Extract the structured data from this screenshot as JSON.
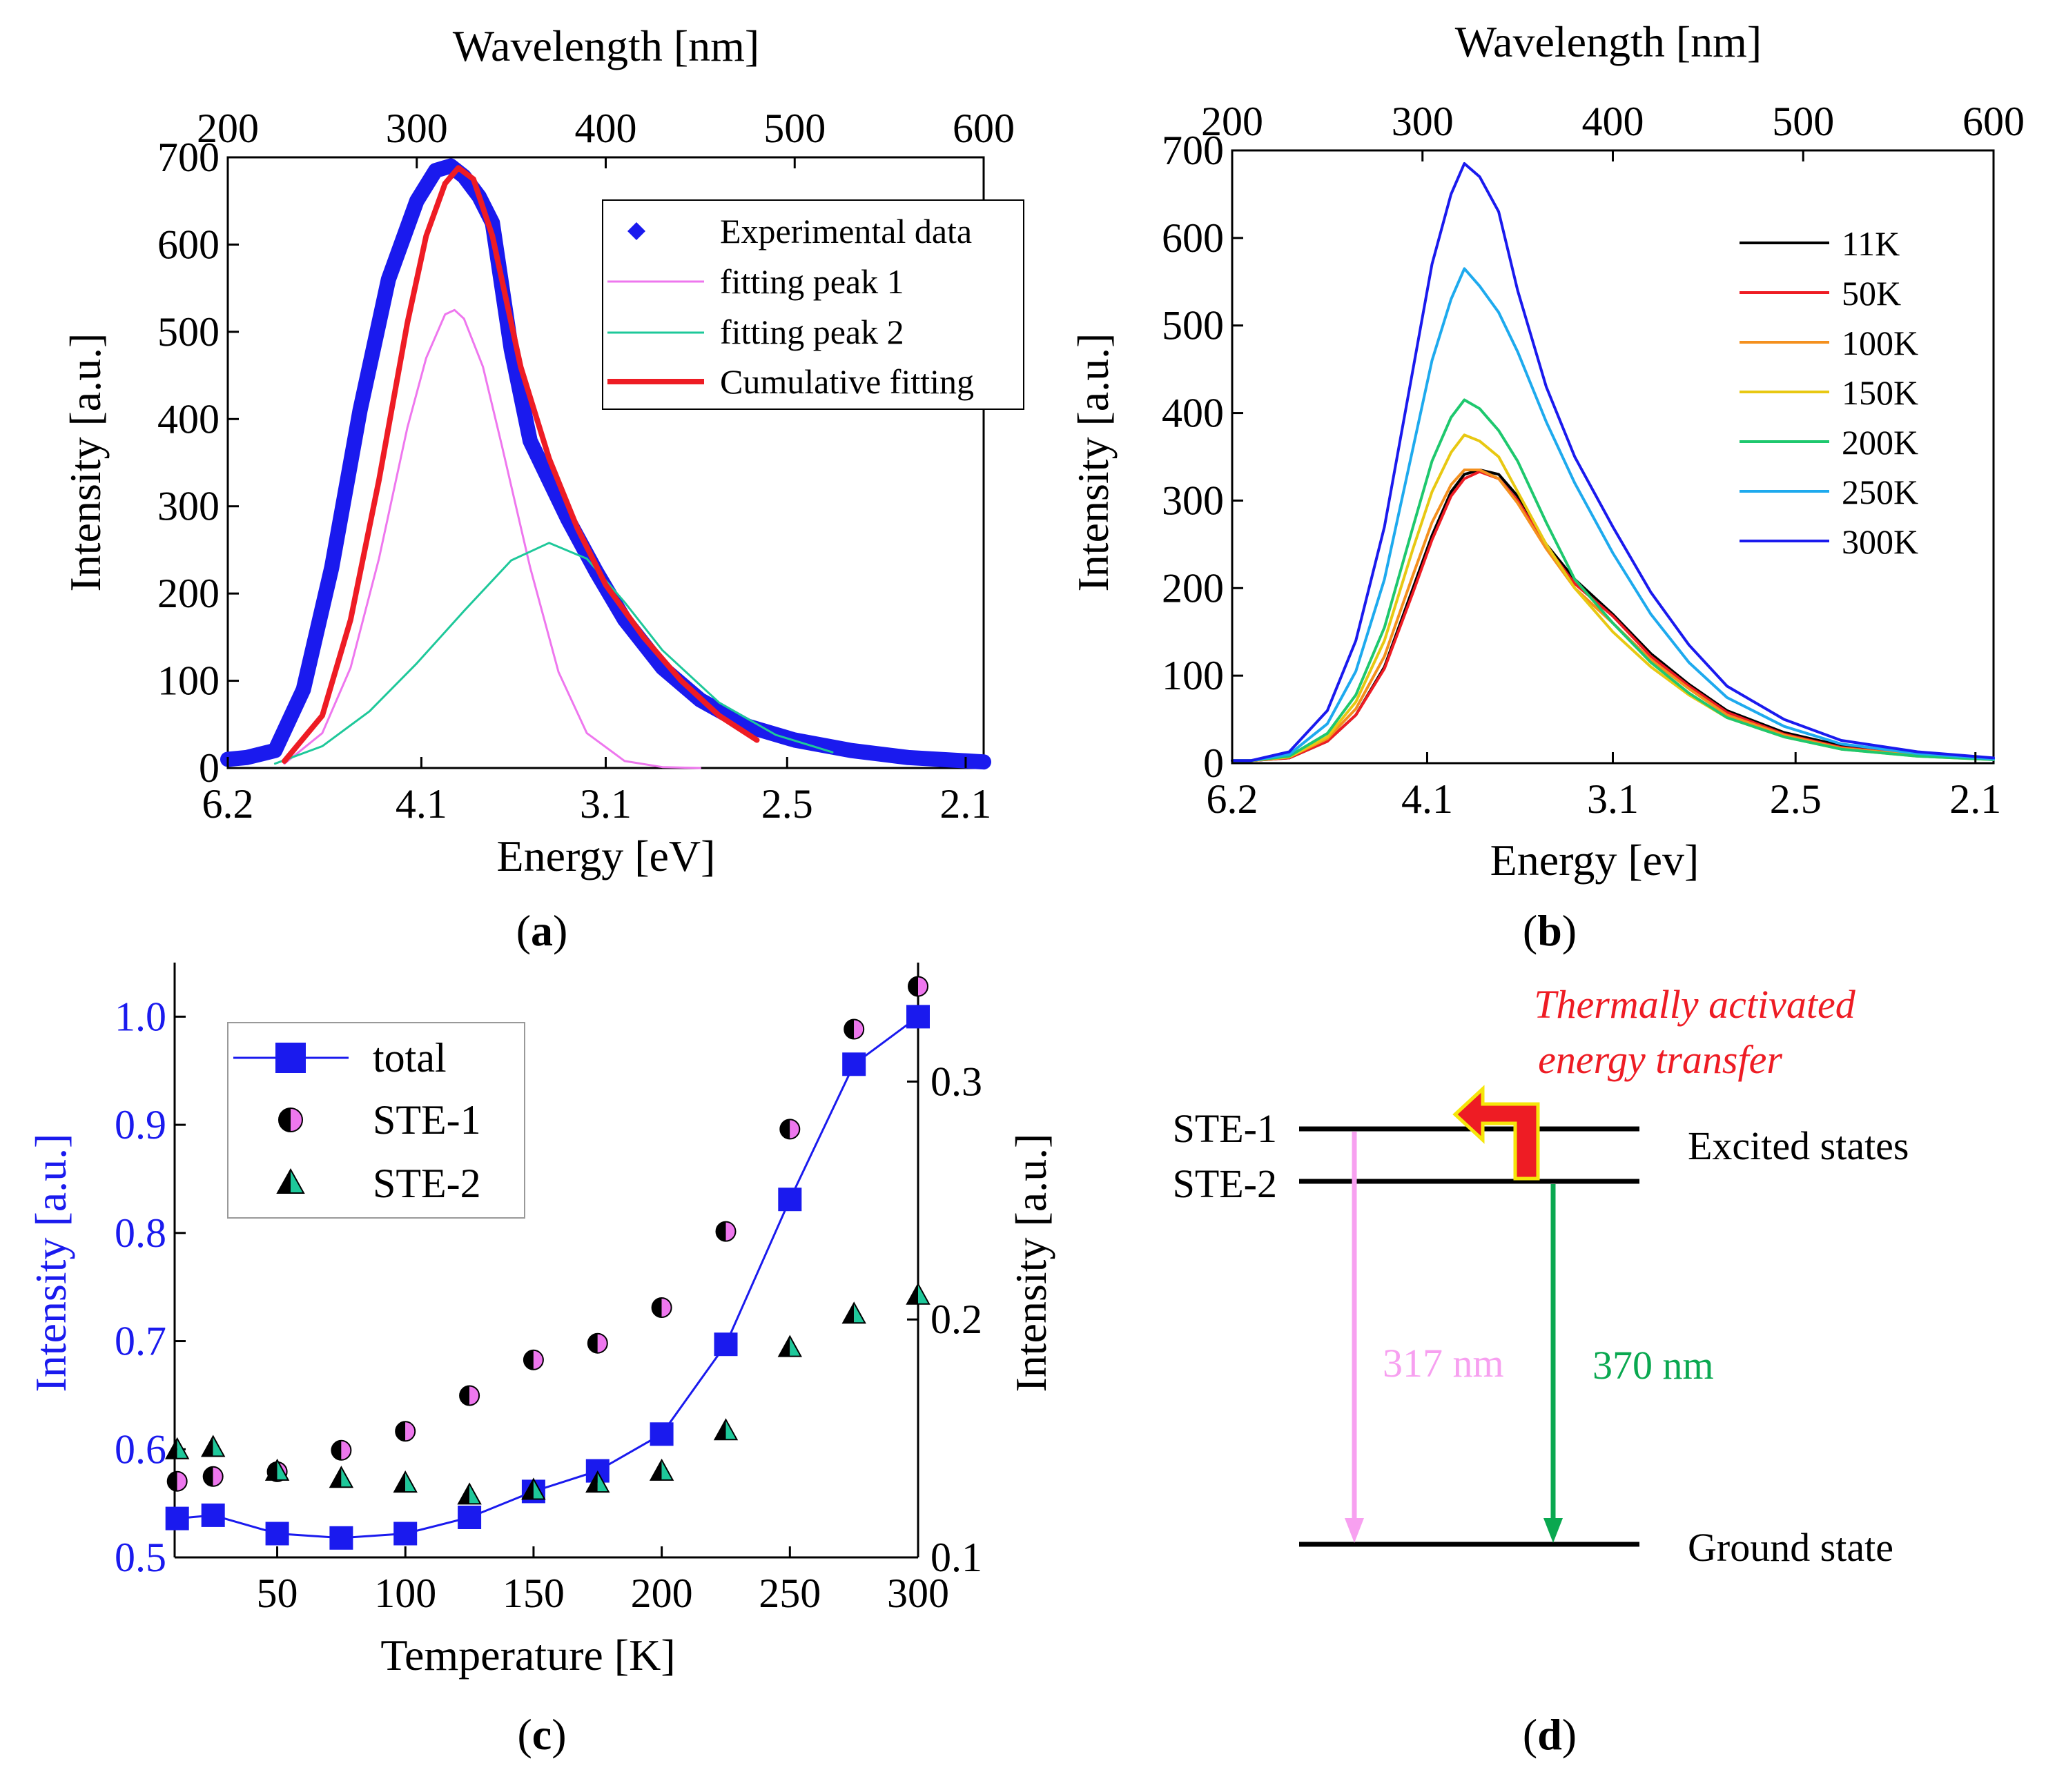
{
  "chart_data": [
    {
      "id": "a",
      "type": "line",
      "caption": "a",
      "xlabel": "Energy [eV]",
      "top_xlabel": "Wavelength [nm]",
      "ylabel": "Intensity [a.u.]",
      "ylim": [
        0,
        700
      ],
      "y_ticks": [
        "0",
        "100",
        "200",
        "300",
        "400",
        "500",
        "600",
        "700"
      ],
      "x_ticks": [
        "6.2",
        "4.1",
        "3.1",
        "2.5",
        "2.1"
      ],
      "top_x_ticks": [
        "200",
        "300",
        "400",
        "500",
        "600"
      ],
      "x_unit": "wavelength_nm",
      "xlim": [
        200,
        600
      ],
      "legend": [
        "Experimental data",
        "fitting peak 1",
        "fitting peak 2",
        "Cumulative fitting"
      ],
      "series": [
        {
          "name": "Experimental data",
          "color": "#1a1aee",
          "style": "marker",
          "x": [
            192,
            210,
            225,
            240,
            255,
            270,
            285,
            300,
            310,
            318,
            325,
            333,
            340,
            350,
            360,
            370,
            380,
            395,
            410,
            430,
            450,
            475,
            500,
            530,
            560,
            600
          ],
          "y": [
            10,
            12,
            20,
            90,
            230,
            410,
            560,
            650,
            685,
            690,
            678,
            655,
            625,
            480,
            375,
            330,
            285,
            225,
            170,
            115,
            78,
            48,
            32,
            20,
            12,
            7
          ]
        },
        {
          "name": "fitting peak 1",
          "color": "#ee77ee",
          "style": "thin",
          "x": [
            230,
            250,
            265,
            280,
            295,
            305,
            315,
            320,
            325,
            335,
            345,
            360,
            375,
            390,
            410,
            430,
            450
          ],
          "y": [
            5,
            40,
            115,
            240,
            390,
            470,
            520,
            525,
            515,
            460,
            370,
            230,
            110,
            40,
            8,
            1,
            0
          ]
        },
        {
          "name": "fitting peak 2",
          "color": "#1ec89a",
          "style": "thin",
          "x": [
            225,
            250,
            275,
            300,
            325,
            350,
            370,
            390,
            410,
            430,
            460,
            490,
            520
          ],
          "y": [
            5,
            25,
            65,
            120,
            180,
            238,
            258,
            240,
            190,
            135,
            75,
            38,
            18
          ]
        },
        {
          "name": "Cumulative fitting",
          "color": "#ee1c24",
          "style": "thick",
          "x": [
            230,
            250,
            265,
            280,
            295,
            305,
            315,
            322,
            330,
            340,
            355,
            370,
            385,
            400,
            420,
            440,
            460,
            480
          ],
          "y": [
            8,
            60,
            170,
            330,
            510,
            610,
            670,
            688,
            675,
            610,
            460,
            355,
            275,
            210,
            150,
            100,
            60,
            32
          ]
        }
      ]
    },
    {
      "id": "b",
      "type": "line",
      "caption": "b",
      "xlabel": "Energy [ev]",
      "top_xlabel": "Wavelength [nm]",
      "ylabel": "Intensity [a.u.]",
      "ylim": [
        0,
        700
      ],
      "y_ticks": [
        "0",
        "100",
        "200",
        "300",
        "400",
        "500",
        "600",
        "700"
      ],
      "x_ticks": [
        "6.2",
        "4.1",
        "3.1",
        "2.5",
        "2.1"
      ],
      "top_x_ticks": [
        "200",
        "300",
        "400",
        "500",
        "600"
      ],
      "x_unit": "wavelength_nm",
      "xlim": [
        200,
        600
      ],
      "legend": [
        "11K",
        "50K",
        "100K",
        "150K",
        "200K",
        "250K",
        "300K"
      ],
      "x": [
        192,
        210,
        230,
        250,
        265,
        280,
        295,
        305,
        315,
        322,
        330,
        340,
        350,
        365,
        380,
        400,
        420,
        440,
        460,
        490,
        520,
        560,
        600
      ],
      "series": [
        {
          "name": "11K",
          "color": "#000000",
          "y": [
            3,
            3,
            6,
            25,
            55,
            110,
            200,
            260,
            310,
            330,
            335,
            330,
            305,
            250,
            210,
            170,
            125,
            90,
            60,
            35,
            20,
            10,
            5
          ]
        },
        {
          "name": "50K",
          "color": "#ee1c24",
          "y": [
            3,
            3,
            6,
            25,
            55,
            108,
            195,
            255,
            305,
            325,
            333,
            325,
            300,
            248,
            205,
            168,
            122,
            88,
            58,
            33,
            18,
            9,
            5
          ]
        },
        {
          "name": "100K",
          "color": "#f4901e",
          "y": [
            3,
            3,
            7,
            28,
            62,
            122,
            215,
            275,
            318,
            335,
            335,
            325,
            297,
            245,
            200,
            160,
            118,
            85,
            55,
            32,
            17,
            9,
            5
          ]
        },
        {
          "name": "150K",
          "color": "#e8c812",
          "y": [
            3,
            3,
            7,
            30,
            70,
            140,
            245,
            310,
            355,
            375,
            368,
            350,
            310,
            250,
            200,
            150,
            110,
            78,
            52,
            30,
            16,
            8,
            4
          ]
        },
        {
          "name": "200K",
          "color": "#1ec86e",
          "y": [
            3,
            3,
            8,
            34,
            78,
            155,
            270,
            345,
            395,
            415,
            405,
            380,
            345,
            275,
            210,
            160,
            115,
            80,
            52,
            30,
            16,
            8,
            4
          ]
        },
        {
          "name": "250K",
          "color": "#1eaaee",
          "y": [
            3,
            3,
            10,
            45,
            105,
            210,
            360,
            460,
            530,
            565,
            545,
            515,
            470,
            390,
            320,
            240,
            170,
            115,
            75,
            42,
            22,
            11,
            5
          ]
        },
        {
          "name": "300K",
          "color": "#1a1aee",
          "y": [
            3,
            3,
            13,
            60,
            140,
            270,
            450,
            570,
            650,
            685,
            670,
            630,
            540,
            430,
            350,
            270,
            195,
            135,
            88,
            50,
            26,
            13,
            6
          ]
        }
      ]
    },
    {
      "id": "c",
      "type": "scatter",
      "caption": "c",
      "xlabel": "Temperature [K]",
      "ylabel": "Intensity [a.u.]",
      "ylabel_right": "Intensity [a.u.]",
      "xlim": [
        10,
        300
      ],
      "ylim": [
        0.5,
        1.05
      ],
      "ylim_right": [
        0.1,
        0.35
      ],
      "x_ticks": [
        "50",
        "100",
        "150",
        "200",
        "250",
        "300"
      ],
      "y_ticks": [
        "0.5",
        "0.6",
        "0.7",
        "0.8",
        "0.9",
        "1.0"
      ],
      "y_ticks_right": [
        "0.1",
        "0.2",
        "0.3"
      ],
      "legend": [
        "total",
        "STE-1",
        "STE-2"
      ],
      "x": [
        11,
        25,
        50,
        75,
        100,
        125,
        150,
        175,
        200,
        225,
        250,
        275,
        300
      ],
      "series": [
        {
          "name": "total",
          "axis": "left",
          "color": "#1a1aee",
          "marker": "square",
          "line": true,
          "values": [
            0.536,
            0.539,
            0.522,
            0.518,
            0.522,
            0.537,
            0.561,
            0.58,
            0.614,
            0.697,
            0.831,
            0.956,
            1.0
          ]
        },
        {
          "name": "STE-1",
          "axis": "right",
          "color": "#ee77ee",
          "marker": "half-circle",
          "values": [
            0.132,
            0.134,
            0.136,
            0.145,
            0.153,
            0.168,
            0.183,
            0.19,
            0.205,
            0.237,
            0.28,
            0.322,
            0.34
          ]
        },
        {
          "name": "STE-2",
          "axis": "right",
          "color": "#1ec89a",
          "marker": "half-triangle",
          "values": [
            0.145,
            0.146,
            0.136,
            0.133,
            0.131,
            0.126,
            0.128,
            0.131,
            0.136,
            0.153,
            0.188,
            0.202,
            0.21
          ]
        }
      ]
    }
  ],
  "diagram_d": {
    "caption": "d",
    "title_line1": "Thermally activated",
    "title_line2": "energy transfer",
    "ste1": "STE-1",
    "ste2": "STE-2",
    "excited": "Excited states",
    "ground": "Ground state",
    "emission1": "317 nm",
    "emission2": "370 nm",
    "colors": {
      "title": "#ee1c24",
      "emission1": "#f7a0f0",
      "emission2": "#0aa850",
      "arrow_fill": "#ee1c24",
      "arrow_edge": "#f5e60a"
    }
  }
}
